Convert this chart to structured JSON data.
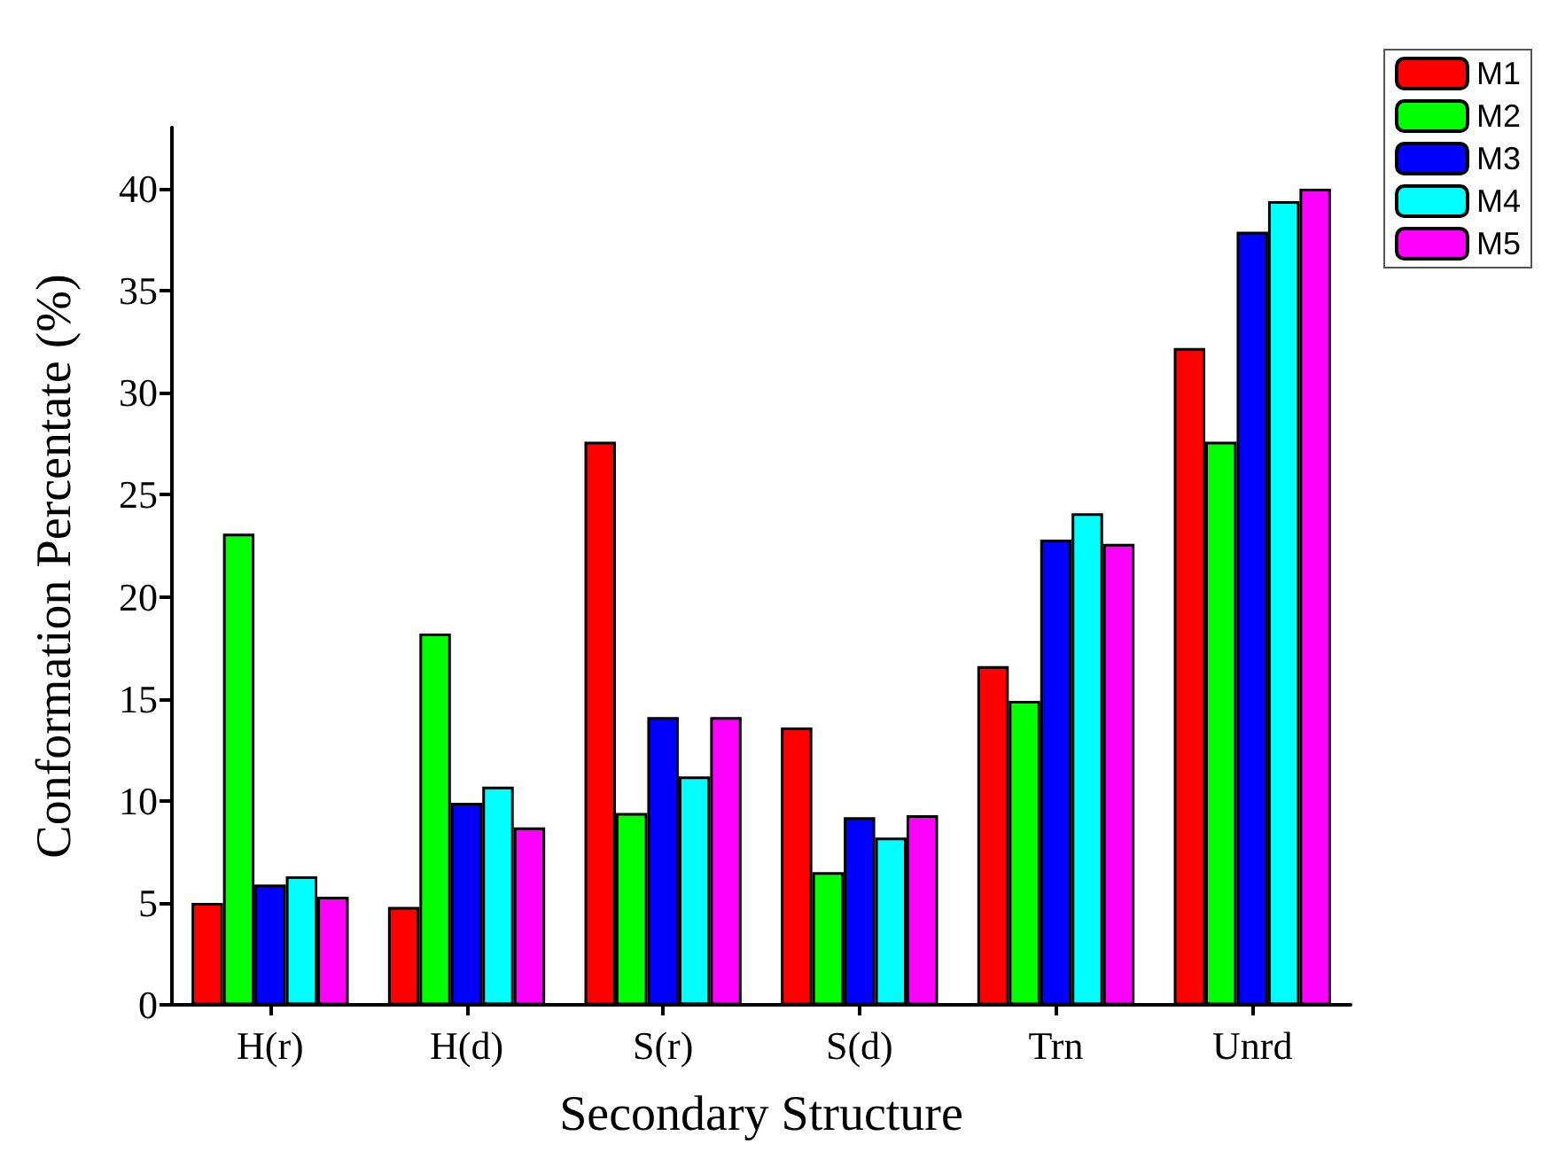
{
  "chart_data": {
    "type": "bar",
    "xlabel": "Secondary Structure",
    "ylabel": "Conformation Percentate (%)",
    "categories": [
      "H(r)",
      "H(d)",
      "S(r)",
      "S(d)",
      "Trn",
      "Unrd"
    ],
    "series": [
      {
        "name": "M1",
        "color": "#ff0000",
        "values": [
          5.0,
          4.8,
          27.6,
          13.6,
          16.6,
          32.2
        ]
      },
      {
        "name": "M2",
        "color": "#00ff00",
        "values": [
          23.1,
          18.2,
          9.4,
          6.5,
          14.9,
          27.6
        ]
      },
      {
        "name": "M3",
        "color": "#0000ff",
        "values": [
          5.9,
          9.9,
          14.1,
          9.2,
          22.8,
          37.9
        ]
      },
      {
        "name": "M4",
        "color": "#00ffff",
        "values": [
          6.3,
          10.7,
          11.2,
          8.2,
          24.1,
          39.4
        ]
      },
      {
        "name": "M5",
        "color": "#ff00ff",
        "values": [
          5.3,
          8.7,
          14.1,
          9.3,
          22.6,
          40.0
        ]
      }
    ],
    "ylim": [
      0,
      43
    ],
    "yticks": [
      0,
      5,
      10,
      15,
      20,
      25,
      30,
      35,
      40
    ],
    "grid": false,
    "legend": "top right"
  }
}
